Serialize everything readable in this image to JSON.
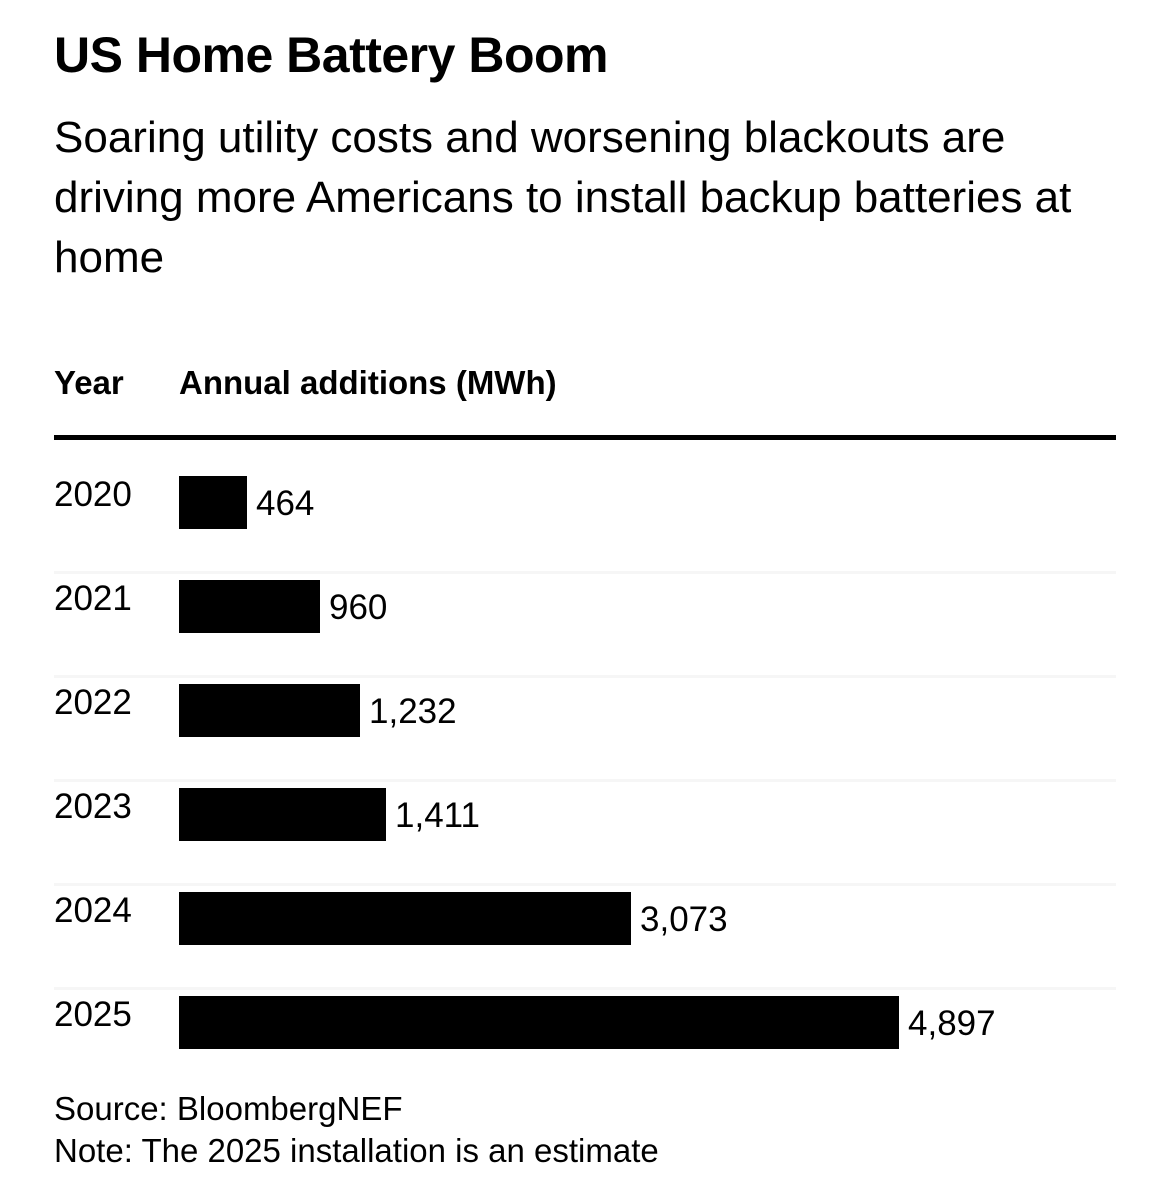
{
  "header": {
    "title": "US Home Battery Boom",
    "subtitle": "Soaring utility costs and worsening blackouts are driving more Americans to install backup batteries at home"
  },
  "table": {
    "col_year": "Year",
    "col_value": "Annual additions (MWh)"
  },
  "chart_data": {
    "type": "bar",
    "orientation": "horizontal",
    "title": "US Home Battery Boom",
    "subtitle": "Soaring utility costs and worsening blackouts are driving more Americans to install backup batteries at home",
    "xlabel": "Annual additions (MWh)",
    "ylabel": "Year",
    "categories": [
      "2020",
      "2021",
      "2022",
      "2023",
      "2024",
      "2025"
    ],
    "values": [
      464,
      960,
      1232,
      1411,
      3073,
      4897
    ],
    "labels": [
      "464",
      "960",
      "1,232",
      "1,411",
      "3,073",
      "4,897"
    ],
    "xlim": [
      0,
      4897
    ],
    "grid": false,
    "legend": "none",
    "bar_color": "#000000"
  },
  "footer": {
    "source": "Source: BloombergNEF",
    "note": "Note: The 2025 installation is an estimate"
  }
}
